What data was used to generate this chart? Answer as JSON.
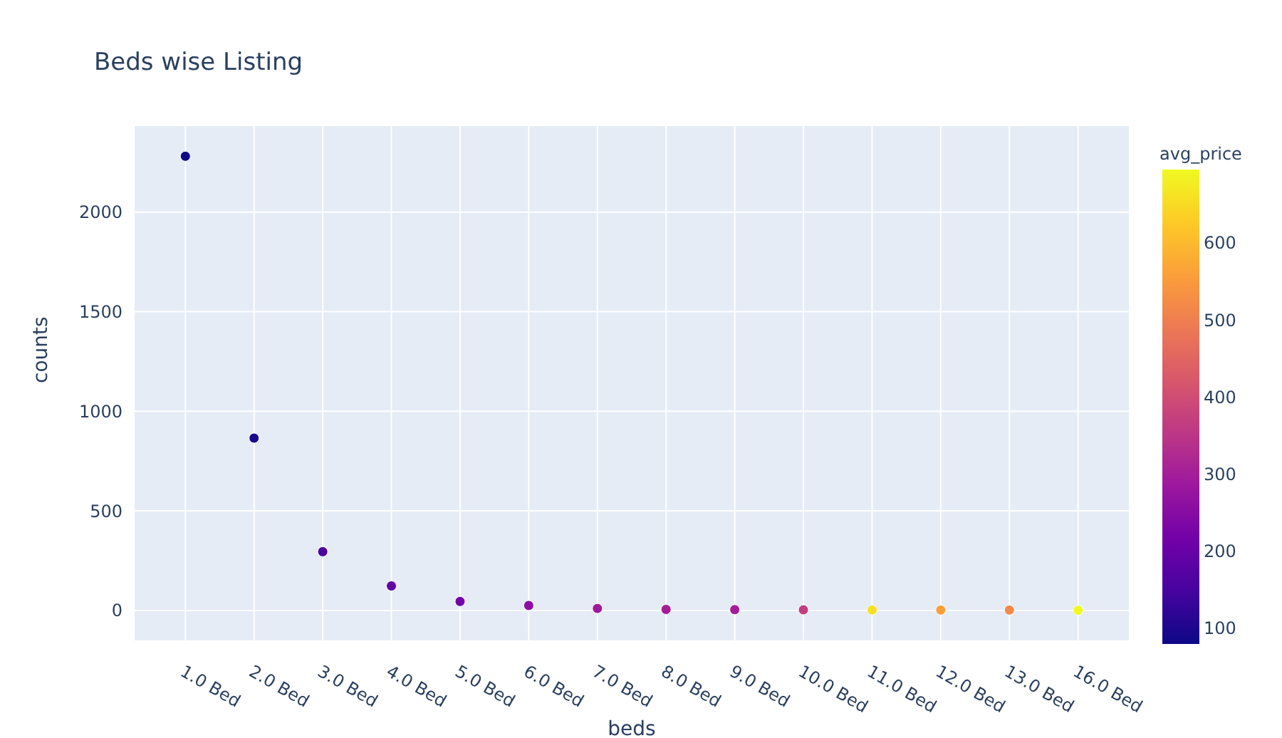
{
  "chart_data": {
    "type": "scatter",
    "title": "Beds wise Listing",
    "xlabel": "beds",
    "ylabel": "counts",
    "clabel": "avg_price",
    "categories": [
      "1.0 Bed",
      "2.0 Bed",
      "3.0 Bed",
      "4.0 Bed",
      "5.0 Bed",
      "6.0 Bed",
      "7.0 Bed",
      "8.0 Bed",
      "9.0 Bed",
      "10.0 Bed",
      "11.0 Bed",
      "12.0 Bed",
      "13.0 Bed",
      "16.0 Bed"
    ],
    "values": [
      2280,
      865,
      295,
      123,
      45,
      25,
      10,
      5,
      4,
      3,
      2,
      2,
      2,
      1
    ],
    "cvalues": [
      85,
      95,
      160,
      190,
      220,
      260,
      290,
      300,
      300,
      370,
      660,
      560,
      520,
      697
    ],
    "ylim": [
      -154,
      2435
    ],
    "yticks": [
      0,
      500,
      1000,
      1500,
      2000
    ],
    "clim": [
      81,
      697
    ],
    "cticks": [
      100,
      200,
      300,
      400,
      500,
      600
    ],
    "grid": true,
    "marker": "circle"
  }
}
